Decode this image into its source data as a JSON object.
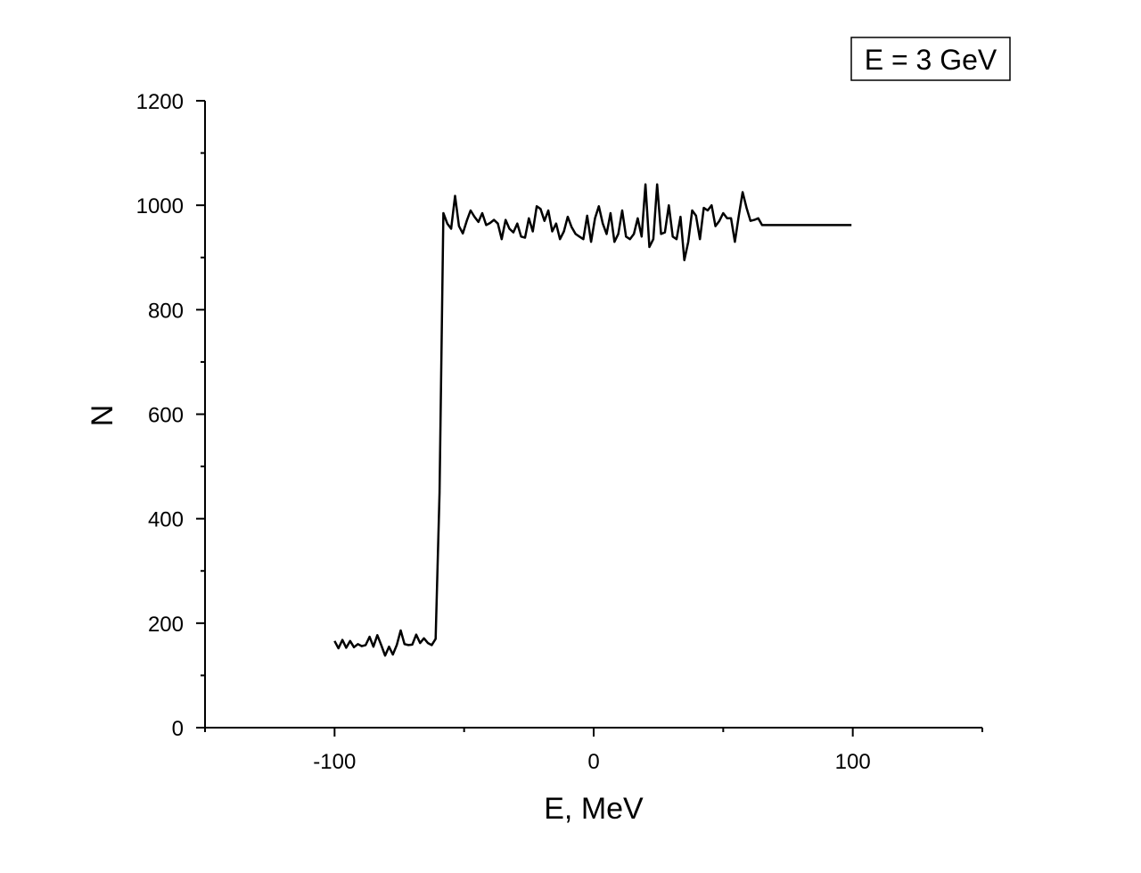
{
  "chart_data": {
    "type": "line",
    "xlabel": "E, MeV",
    "ylabel": "N",
    "xlim": [
      -150,
      150
    ],
    "ylim": [
      0,
      1200
    ],
    "x_ticks": [
      -100,
      0,
      100
    ],
    "x_tick_labels": [
      "-100",
      "0",
      "100"
    ],
    "y_ticks": [
      0,
      200,
      400,
      600,
      800,
      1000,
      1200
    ],
    "y_tick_labels": [
      "0",
      "200",
      "400",
      "600",
      "800",
      "1000",
      "1200"
    ],
    "legend_text": "E = 3 GeV",
    "legend_placement": "top-right",
    "grid": false,
    "colors": {
      "line": "#000000",
      "axis": "#000000"
    },
    "series": [
      {
        "x": [
          -100,
          -98.5,
          -97,
          -95.5,
          -94,
          -92.5,
          -91,
          -89.5,
          -88,
          -86.5,
          -85,
          -83.5,
          -82,
          -80.5,
          -79,
          -77.5,
          -76,
          -74.5,
          -73,
          -71.5,
          -70,
          -68.5,
          -67,
          -65.5,
          -64,
          -62.5,
          -61,
          -59.5,
          -58,
          -56.5,
          -55,
          -53.5,
          -52,
          -50.5,
          -49,
          -47.5,
          -46,
          -44.5,
          -43,
          -41.5,
          -40,
          -38.5,
          -37,
          -35.5,
          -34,
          -32.5,
          -31,
          -29.5,
          -28,
          -26.5,
          -25,
          -23.5,
          -22,
          -20.5,
          -19,
          -17.5,
          -16,
          -14.5,
          -13,
          -11.5,
          -10,
          -8.5,
          -7,
          -5.5,
          -4,
          -2.5,
          -1,
          0.5,
          2,
          3.5,
          5,
          6.5,
          8,
          9.5,
          11,
          12.5,
          14,
          15.5,
          17,
          18.5,
          20,
          21.5,
          23,
          24.5,
          26,
          27.5,
          29,
          30.5,
          32,
          33.5,
          35,
          36.5,
          38,
          39.5,
          41,
          42.5,
          44,
          45.5,
          47,
          48.5,
          50,
          51.5,
          53,
          54.5,
          56,
          57.5,
          59,
          60.5,
          62,
          63.5,
          65,
          66.5,
          68,
          69.5,
          71,
          72.5,
          74,
          75.5,
          77,
          78.5,
          80,
          81.5,
          83,
          84.5,
          86,
          87.5,
          89,
          90.5,
          92,
          93.5,
          95,
          96.5,
          98,
          99.5
        ],
        "y": [
          166,
          152,
          168,
          153,
          166,
          154,
          160,
          156,
          158,
          174,
          155,
          177,
          158,
          138,
          155,
          140,
          158,
          186,
          160,
          158,
          159,
          178,
          162,
          171,
          162,
          158,
          170,
          450,
          985,
          965,
          955,
          1018,
          960,
          946,
          970,
          990,
          978,
          968,
          985,
          962,
          966,
          972,
          965,
          935,
          972,
          955,
          948,
          965,
          940,
          938,
          975,
          950,
          998,
          993,
          970,
          990,
          950,
          965,
          935,
          950,
          978,
          958,
          945,
          940,
          935,
          980,
          930,
          975,
          998,
          965,
          945,
          985,
          930,
          945,
          990,
          940,
          935,
          945,
          975,
          940,
          1040,
          920,
          935,
          1040,
          945,
          948,
          1000,
          940,
          935,
          978,
          895,
          930,
          990,
          980,
          935,
          995,
          990,
          1000,
          960,
          970,
          985,
          975,
          975,
          930,
          980,
          1025,
          995,
          970,
          972,
          975,
          962,
          962,
          962,
          962,
          962,
          962,
          962,
          962,
          962,
          962,
          962,
          962,
          962,
          962,
          962,
          962,
          962,
          962,
          962,
          962,
          962,
          962,
          962,
          962
        ]
      }
    ]
  }
}
